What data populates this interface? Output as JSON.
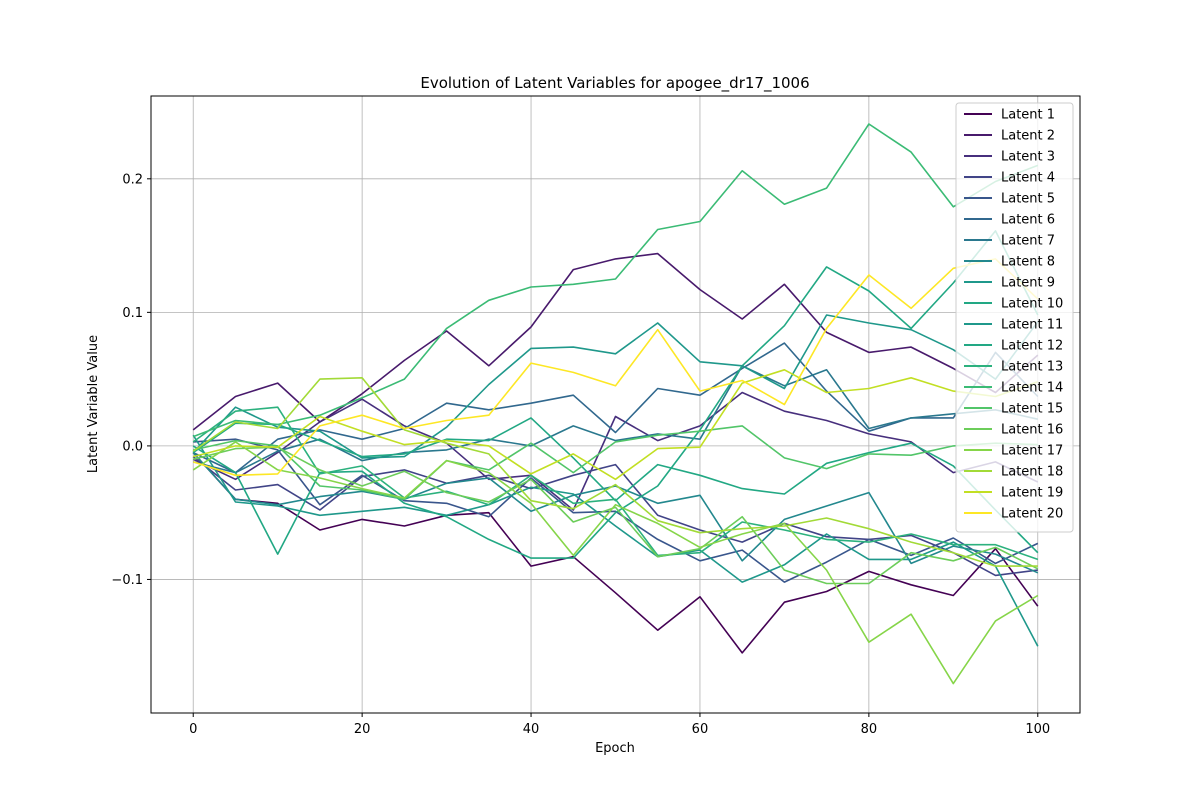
{
  "chart_data": {
    "type": "line",
    "title": "Evolution of Latent Variables for apogee_dr17_1006",
    "xlabel": "Epoch",
    "ylabel": "Latent Variable Value",
    "xlim": [
      -5,
      105
    ],
    "ylim": [
      -0.2,
      0.262
    ],
    "xticks": [
      0,
      20,
      40,
      60,
      80,
      100
    ],
    "yticks": [
      -0.1,
      0.0,
      0.1,
      0.2
    ],
    "ytick_labels": [
      "−0.1",
      "0.0",
      "0.1",
      "0.2"
    ],
    "grid": true,
    "legend_position": "top-right",
    "x": [
      0,
      5,
      10,
      15,
      20,
      25,
      30,
      35,
      40,
      45,
      50,
      55,
      60,
      65,
      70,
      75,
      80,
      85,
      90,
      95,
      100
    ],
    "series": [
      {
        "name": "Latent 1",
        "color": "#440154",
        "values": [
          -0.005,
          -0.04,
          -0.043,
          -0.063,
          -0.055,
          -0.06,
          -0.052,
          -0.05,
          -0.09,
          -0.083,
          -0.11,
          -0.138,
          -0.113,
          -0.155,
          -0.117,
          -0.109,
          -0.094,
          -0.104,
          -0.112,
          -0.077,
          -0.12
        ]
      },
      {
        "name": "Latent 2",
        "color": "#481a6c",
        "values": [
          0.012,
          0.037,
          0.047,
          0.018,
          0.039,
          0.064,
          0.086,
          0.06,
          0.089,
          0.132,
          0.14,
          0.144,
          0.117,
          0.095,
          0.121,
          0.085,
          0.07,
          0.074,
          0.058,
          0.04,
          0.068
        ]
      },
      {
        "name": "Latent 3",
        "color": "#472f7d",
        "values": [
          -0.01,
          -0.025,
          -0.005,
          0.018,
          0.035,
          0.015,
          0.002,
          -0.025,
          -0.022,
          -0.048,
          0.022,
          0.004,
          0.015,
          0.04,
          0.026,
          0.019,
          0.009,
          0.003,
          -0.02,
          -0.012,
          -0.027
        ]
      },
      {
        "name": "Latent 4",
        "color": "#414487",
        "values": [
          -0.008,
          -0.033,
          -0.029,
          -0.048,
          -0.023,
          -0.018,
          -0.028,
          -0.022,
          -0.032,
          -0.022,
          -0.014,
          -0.052,
          -0.063,
          -0.072,
          -0.058,
          -0.068,
          -0.07,
          -0.067,
          -0.08,
          -0.097,
          -0.093
        ]
      },
      {
        "name": "Latent 5",
        "color": "#39568c",
        "values": [
          0.003,
          0.005,
          -0.003,
          -0.044,
          -0.022,
          -0.041,
          -0.043,
          -0.053,
          -0.024,
          -0.05,
          -0.049,
          -0.07,
          -0.086,
          -0.078,
          -0.102,
          -0.087,
          -0.07,
          -0.082,
          -0.069,
          -0.088,
          -0.073
        ]
      },
      {
        "name": "Latent 6",
        "color": "#31688e",
        "values": [
          -0.005,
          -0.02,
          0.005,
          0.012,
          0.005,
          0.013,
          0.032,
          0.027,
          0.032,
          0.038,
          0.01,
          0.043,
          0.038,
          0.058,
          0.077,
          0.041,
          0.011,
          0.021,
          0.021,
          0.07,
          0.037
        ]
      },
      {
        "name": "Latent 7",
        "color": "#2a788e",
        "values": [
          -0.012,
          -0.02,
          -0.004,
          0.005,
          -0.011,
          -0.005,
          -0.003,
          0.005,
          0.0,
          0.015,
          0.004,
          0.009,
          0.005,
          0.06,
          0.045,
          0.057,
          0.013,
          0.021,
          0.024,
          0.027,
          0.02
        ]
      },
      {
        "name": "Latent 8",
        "color": "#23888e",
        "values": [
          -0.005,
          -0.04,
          -0.044,
          -0.038,
          -0.034,
          -0.04,
          -0.028,
          -0.024,
          -0.049,
          -0.037,
          -0.03,
          -0.043,
          -0.037,
          -0.086,
          -0.055,
          -0.045,
          -0.035,
          -0.088,
          -0.075,
          -0.081,
          -0.095
        ]
      },
      {
        "name": "Latent 9",
        "color": "#1f988b",
        "values": [
          0.008,
          -0.042,
          -0.045,
          -0.052,
          -0.049,
          -0.046,
          -0.052,
          -0.044,
          -0.031,
          -0.036,
          -0.06,
          -0.083,
          -0.078,
          -0.102,
          -0.089,
          -0.066,
          -0.085,
          -0.085,
          -0.072,
          -0.09,
          -0.15
        ]
      },
      {
        "name": "Latent 10",
        "color": "#22a884",
        "values": [
          0.0,
          -0.02,
          -0.081,
          -0.02,
          -0.019,
          -0.043,
          -0.053,
          -0.07,
          -0.084,
          -0.084,
          -0.05,
          -0.03,
          0.012,
          0.06,
          0.09,
          0.134,
          0.116,
          0.088,
          0.122,
          0.161,
          0.098
        ]
      },
      {
        "name": "Latent 11",
        "color": "#1f988b",
        "values": [
          -0.005,
          0.029,
          0.014,
          0.011,
          -0.009,
          -0.008,
          0.014,
          0.046,
          0.073,
          0.074,
          0.069,
          0.092,
          0.063,
          0.06,
          0.043,
          0.098,
          0.092,
          0.087,
          0.072,
          0.05,
          0.093
        ]
      },
      {
        "name": "Latent 12",
        "color": "#22a884",
        "values": [
          -0.005,
          0.017,
          0.016,
          0.004,
          -0.008,
          -0.006,
          0.005,
          0.004,
          0.021,
          -0.009,
          -0.041,
          -0.014,
          -0.022,
          -0.032,
          -0.036,
          -0.013,
          -0.005,
          0.002,
          -0.015,
          -0.048,
          -0.08
        ]
      },
      {
        "name": "Latent 13",
        "color": "#2cb17e",
        "values": [
          0.003,
          0.026,
          0.029,
          -0.021,
          -0.015,
          -0.039,
          -0.034,
          -0.044,
          -0.022,
          -0.043,
          -0.04,
          -0.082,
          -0.08,
          -0.057,
          -0.063,
          -0.07,
          -0.072,
          -0.066,
          -0.074,
          -0.074,
          -0.085
        ]
      },
      {
        "name": "Latent 14",
        "color": "#3bbb75",
        "values": [
          0.007,
          0.019,
          0.016,
          0.023,
          0.036,
          0.05,
          0.088,
          0.109,
          0.119,
          0.121,
          0.125,
          0.162,
          0.168,
          0.206,
          0.181,
          0.193,
          0.241,
          0.22,
          0.179,
          0.198,
          0.21
        ]
      },
      {
        "name": "Latent 15",
        "color": "#52c569",
        "values": [
          -0.003,
          0.004,
          0.0,
          -0.03,
          -0.033,
          -0.04,
          -0.011,
          -0.018,
          0.002,
          -0.02,
          0.003,
          0.008,
          0.011,
          0.015,
          -0.009,
          -0.017,
          -0.006,
          -0.007,
          0.0,
          0.002,
          0.001
        ]
      },
      {
        "name": "Latent 16",
        "color": "#6ccd5a",
        "values": [
          -0.01,
          -0.002,
          -0.001,
          -0.018,
          -0.03,
          -0.019,
          -0.035,
          -0.042,
          -0.025,
          -0.057,
          -0.046,
          -0.083,
          -0.077,
          -0.053,
          -0.093,
          -0.103,
          -0.103,
          -0.08,
          -0.086,
          -0.076,
          -0.092
        ]
      },
      {
        "name": "Latent 17",
        "color": "#86d549",
        "values": [
          -0.018,
          0.003,
          -0.018,
          -0.024,
          -0.032,
          -0.039,
          -0.011,
          -0.02,
          -0.043,
          -0.082,
          -0.044,
          -0.058,
          -0.076,
          -0.066,
          -0.058,
          -0.093,
          -0.147,
          -0.126,
          -0.178,
          -0.131,
          -0.112
        ]
      },
      {
        "name": "Latent 18",
        "color": "#a2da37",
        "values": [
          -0.004,
          0.018,
          0.013,
          0.05,
          0.051,
          0.012,
          0.002,
          -0.006,
          -0.041,
          -0.047,
          -0.029,
          -0.056,
          -0.065,
          -0.062,
          -0.06,
          -0.054,
          -0.062,
          -0.072,
          -0.08,
          -0.09,
          -0.09
        ]
      },
      {
        "name": "Latent 19",
        "color": "#c2df23",
        "values": [
          -0.008,
          0.0,
          -0.001,
          0.022,
          0.011,
          0.001,
          0.004,
          0.0,
          -0.021,
          -0.006,
          -0.025,
          -0.002,
          -0.001,
          0.047,
          0.057,
          0.04,
          0.043,
          0.051,
          0.041,
          0.037,
          0.048
        ]
      },
      {
        "name": "Latent 20",
        "color": "#fde725",
        "values": [
          -0.012,
          -0.022,
          -0.021,
          0.015,
          0.023,
          0.013,
          0.019,
          0.023,
          0.062,
          0.055,
          0.045,
          0.087,
          0.041,
          0.049,
          0.031,
          0.088,
          0.128,
          0.103,
          0.133,
          0.14,
          0.11
        ]
      }
    ]
  }
}
